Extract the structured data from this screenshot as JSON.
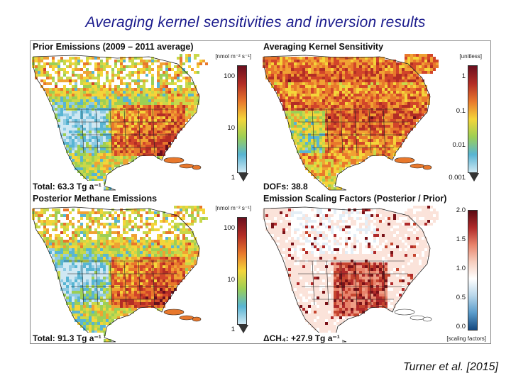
{
  "slide": {
    "title": "Averaging kernel sensitivities and inversion results",
    "citation": "Turner et al. [2015]"
  },
  "colors": {
    "title": "#1a1a8c"
  },
  "panels": [
    {
      "id": "prior",
      "title": "Prior Emissions (2009 – 2011 average)",
      "units": "[nmol m⁻² s⁻¹]",
      "ticks": [
        "100",
        "10",
        "1"
      ],
      "bottom_label": "Total: 63.3 Tg a⁻¹",
      "colormap": "emissions"
    },
    {
      "id": "ak",
      "title": "Averaging Kernel Sensitivity",
      "units": "[unitless]",
      "ticks": [
        "1",
        "0.1",
        "0.01",
        "0.001"
      ],
      "bottom_label": "DOFs: 38.8",
      "colormap": "emissions"
    },
    {
      "id": "posterior",
      "title": "Posterior Methane Emissions",
      "units": "[nmol m⁻² s⁻¹]",
      "ticks": [
        "100",
        "10",
        "1"
      ],
      "bottom_label": "Total: 91.3 Tg a⁻¹",
      "colormap": "emissions"
    },
    {
      "id": "scaling",
      "title": "Emission Scaling Factors (Posterior / Prior)",
      "units": "[scaling factors]",
      "ticks": [
        "2.0",
        "1.5",
        "1.0",
        "0.5",
        "0.0"
      ],
      "bottom_label": "ΔCH₄: +27.9 Tg a⁻¹",
      "colormap": "diverging"
    }
  ]
}
